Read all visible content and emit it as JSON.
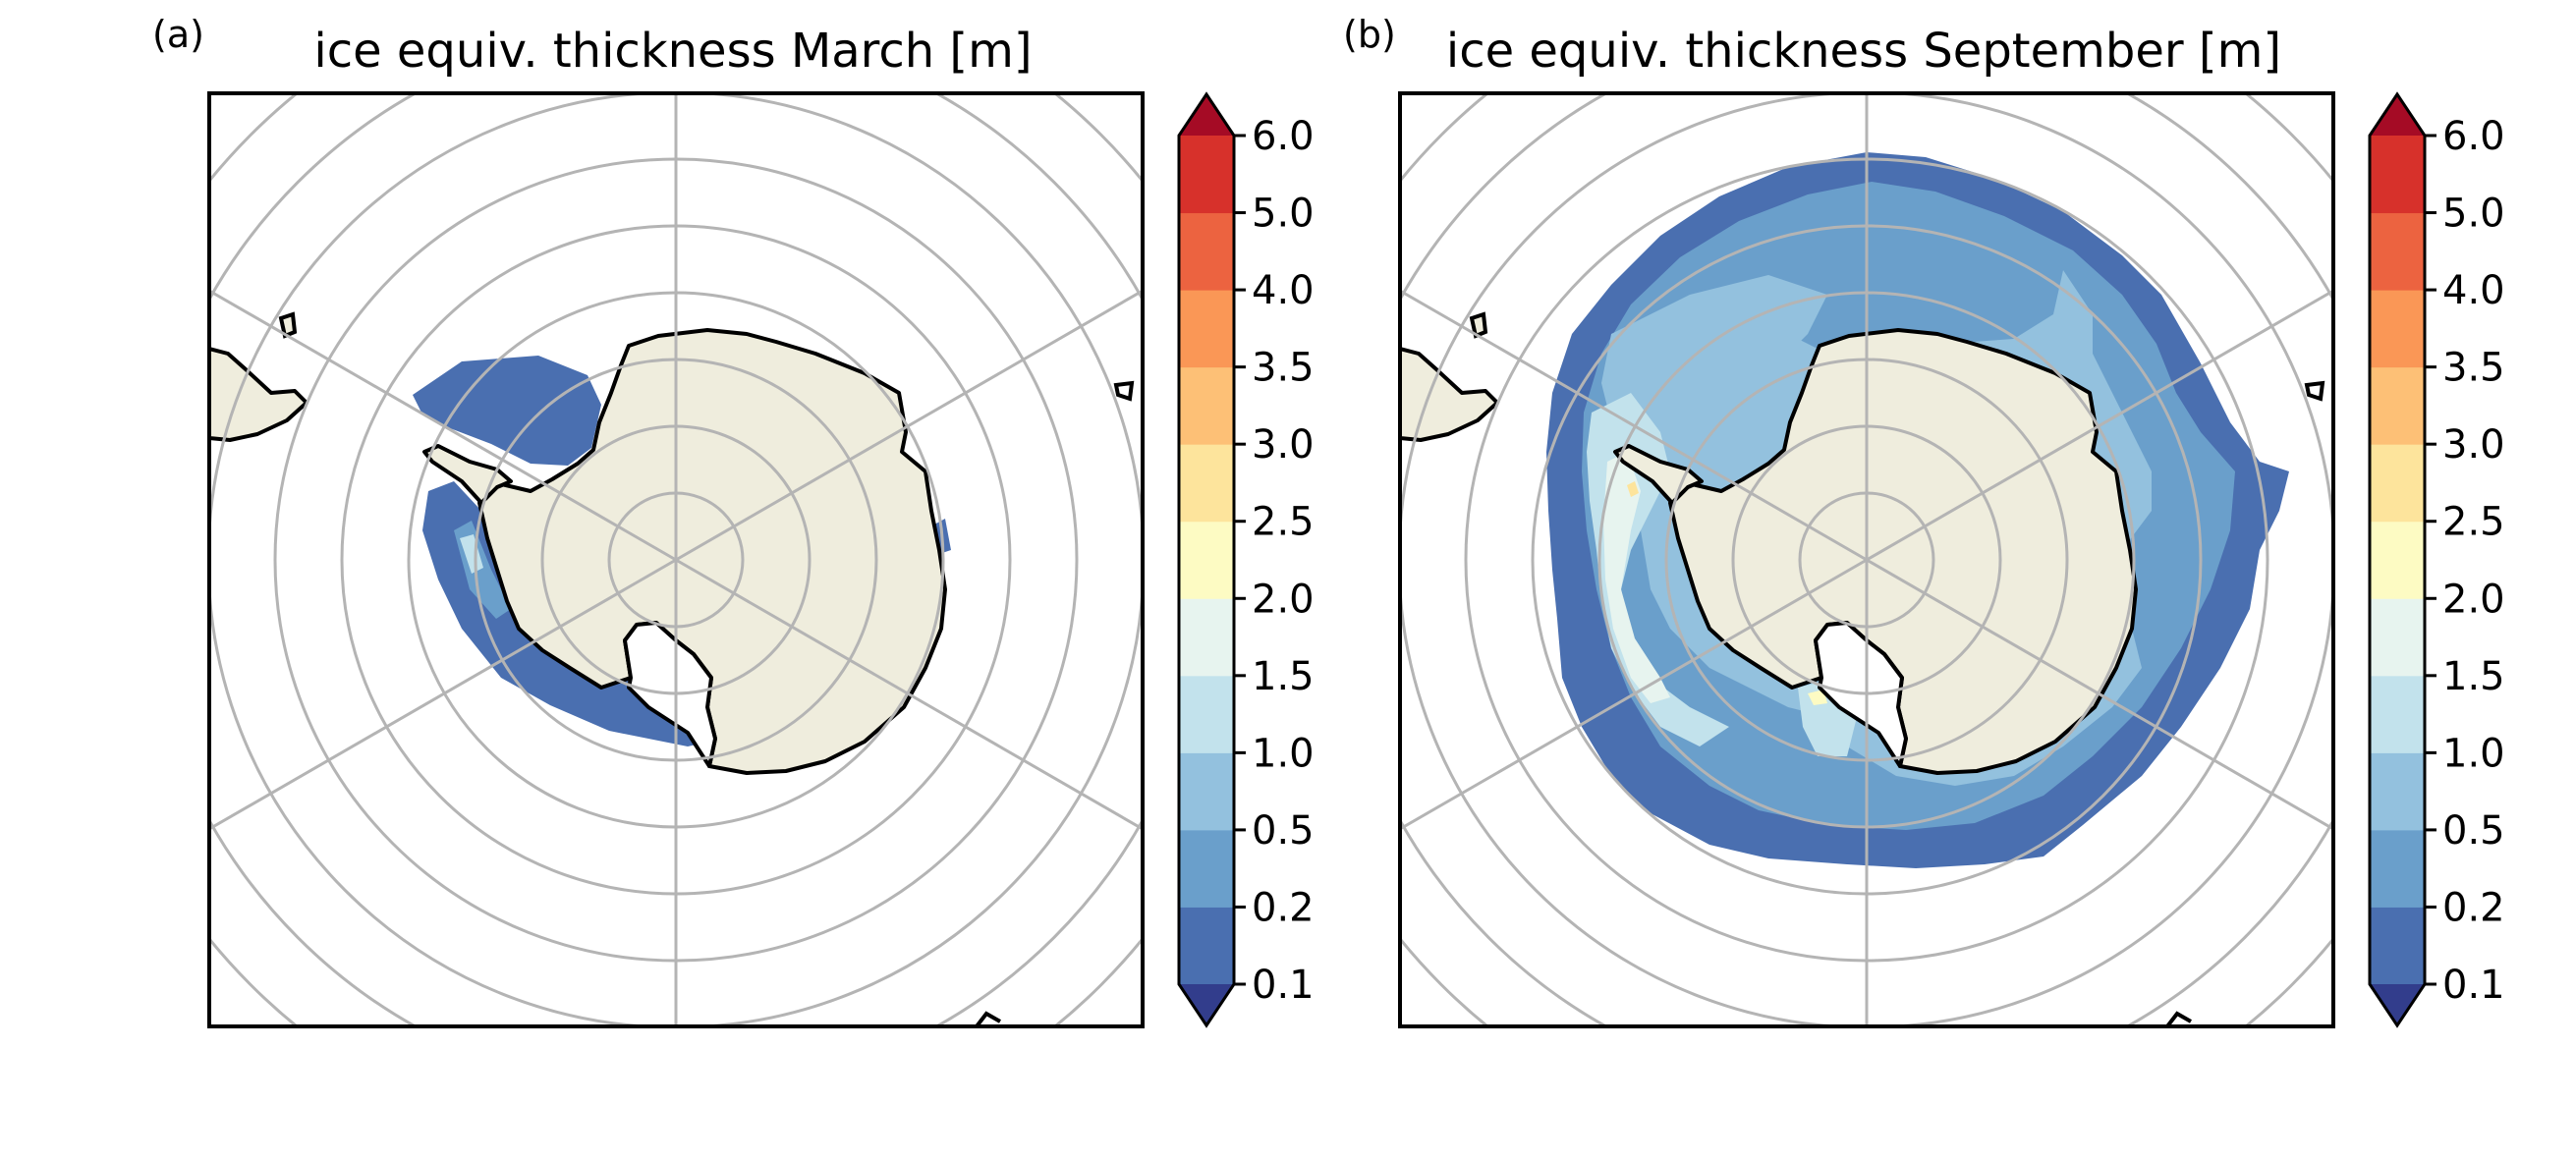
{
  "panels": [
    {
      "letter": "(a)",
      "title": "ice equiv. thickness March [m]",
      "month": "March"
    },
    {
      "letter": "(b)",
      "title": "ice equiv. thickness September [m]",
      "month": "September"
    }
  ],
  "colorbar": {
    "ticks": [
      "0.1",
      "0.2",
      "0.5",
      "1.0",
      "1.5",
      "2.0",
      "2.5",
      "3.0",
      "3.5",
      "4.0",
      "5.0",
      "6.0"
    ],
    "bin_colors": [
      "#4a6fb0",
      "#6a9fcb",
      "#93c1de",
      "#c2e2ec",
      "#e7f4ef",
      "#fdfbc3",
      "#fde49c",
      "#fdc076",
      "#fa9756",
      "#ec6340",
      "#d7312b"
    ],
    "under_color": "#323d8c",
    "over_color": "#a50b25",
    "extend": "both"
  },
  "colors": {
    "land": "#efeddd",
    "coast": "#000000",
    "grid": "#b4b4b4",
    "frame": "#000000"
  }
}
